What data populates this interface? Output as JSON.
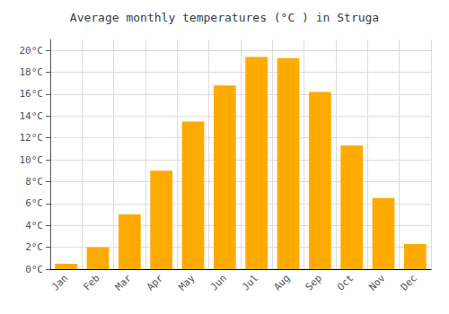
{
  "chart_data": {
    "type": "bar",
    "title": "Average monthly temperatures (°C ) in Struga",
    "categories": [
      "Jan",
      "Feb",
      "Mar",
      "Apr",
      "May",
      "Jun",
      "Jul",
      "Aug",
      "Sep",
      "Oct",
      "Nov",
      "Dec"
    ],
    "values": [
      0.5,
      2.0,
      5.0,
      9.0,
      13.5,
      16.8,
      19.4,
      19.3,
      16.2,
      11.3,
      6.5,
      2.3
    ],
    "color": "#FFAA00",
    "ylim": [
      0,
      21
    ],
    "yticks": [
      {
        "value": 0,
        "label": "0°C"
      },
      {
        "value": 2,
        "label": "2°C"
      },
      {
        "value": 4,
        "label": "4°C"
      },
      {
        "value": 6,
        "label": "6°C"
      },
      {
        "value": 8,
        "label": "8°C"
      },
      {
        "value": 10,
        "label": "10°C"
      },
      {
        "value": 12,
        "label": "12°C"
      },
      {
        "value": 14,
        "label": "14°C"
      },
      {
        "value": 16,
        "label": "16°C"
      },
      {
        "value": 18,
        "label": "18°C"
      },
      {
        "value": 20,
        "label": "20°C"
      }
    ],
    "grid": true
  }
}
